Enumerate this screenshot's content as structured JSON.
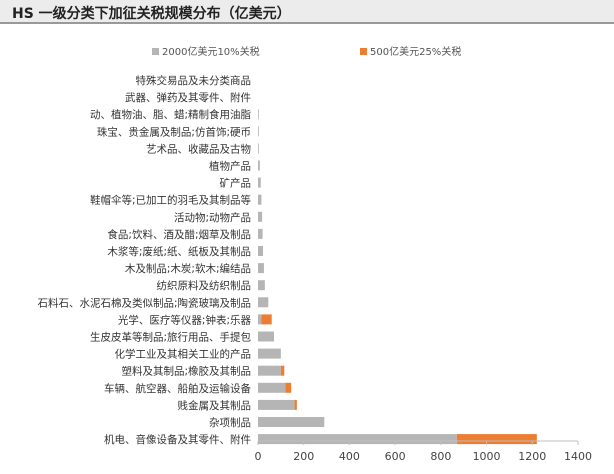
{
  "title": "HS 一级分类下加征关税规模分布（亿美元）",
  "chart_data": {
    "type": "bar",
    "orientation": "horizontal",
    "stacked": true,
    "categories": [
      "特殊交易品及未分类商品",
      "武器、弹药及其零件、附件",
      "动、植物油、脂、蜡;精制食用油脂",
      "珠宝、贵金属及制品;仿首饰;硬币",
      "艺术品、收藏品及古物",
      "植物产品",
      "矿产品",
      "鞋帽伞等;已加工的羽毛及其制品等",
      "活动物;动物产品",
      "食品;饮料、酒及醋;烟草及制品",
      "木浆等;废纸;纸、纸板及其制品",
      "木及制品;木炭;软木;编结品",
      "纺织原料及纺织制品",
      "石料石、水泥石棉及类似制品;陶瓷玻璃及制品",
      "光学、医疗等仪器;钟表;乐器",
      "生皮皮革等制品;旅行用品、手提包",
      "化学工业及其相关工业的产品",
      "塑料及其制品;橡胶及其制品",
      "车辆、航空器、船舶及运输设备",
      "贱金属及其制品",
      "杂项制品",
      "机电、音像设备及其零件、附件"
    ],
    "series": [
      {
        "name": "2000亿美元10%关税",
        "color": "#b5b5b5",
        "values": [
          0,
          0,
          1,
          2,
          2,
          8,
          12,
          15,
          18,
          20,
          22,
          26,
          30,
          45,
          15,
          70,
          100,
          100,
          120,
          160,
          290,
          870
        ]
      },
      {
        "name": "500亿美元25%关税",
        "color": "#ed7d31",
        "values": [
          0,
          0,
          0,
          0,
          0,
          0,
          0,
          0,
          0,
          0,
          0,
          0,
          0,
          0,
          45,
          0,
          0,
          15,
          25,
          10,
          0,
          350
        ]
      }
    ],
    "xlim": [
      0,
      1400
    ],
    "xticks": [
      0,
      200,
      400,
      600,
      800,
      1000,
      1200,
      1400
    ],
    "legend_position": "top-right",
    "grid": false
  }
}
